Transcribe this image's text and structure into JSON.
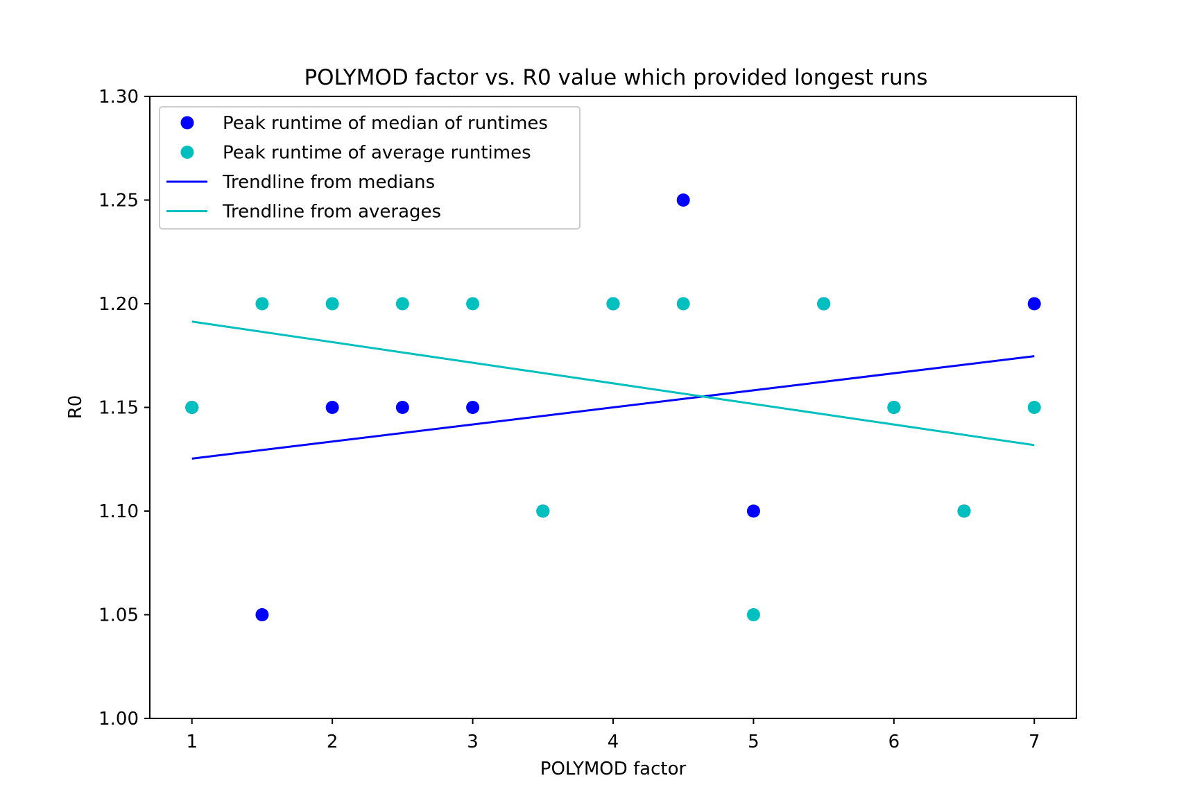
{
  "chart_data": {
    "type": "scatter",
    "title": "POLYMOD factor vs. R0 value which provided longest runs",
    "xlabel": "POLYMOD factor",
    "ylabel": "R0",
    "xlim": [
      0.7,
      7.3
    ],
    "ylim": [
      1.0,
      1.3
    ],
    "xticks": [
      1,
      2,
      3,
      4,
      5,
      6,
      7
    ],
    "xtick_labels": [
      "1",
      "2",
      "3",
      "4",
      "5",
      "6",
      "7"
    ],
    "yticks": [
      1.0,
      1.05,
      1.1,
      1.15,
      1.2,
      1.25,
      1.3
    ],
    "ytick_labels": [
      "1.00",
      "1.05",
      "1.10",
      "1.15",
      "1.20",
      "1.25",
      "1.30"
    ],
    "grid": false,
    "legend_position": "upper-left",
    "series": [
      {
        "name": "Peak runtime of median of runtimes",
        "kind": "scatter",
        "color": "#0000ff",
        "x": [
          1,
          1.5,
          2,
          2.5,
          3,
          3.5,
          4,
          4.5,
          5,
          5.5,
          6,
          6.5,
          7
        ],
        "y": [
          1.15,
          1.05,
          1.15,
          1.15,
          1.15,
          1.1,
          1.2,
          1.25,
          1.1,
          1.2,
          1.15,
          1.1,
          1.2
        ]
      },
      {
        "name": "Peak runtime of average runtimes",
        "kind": "scatter",
        "color": "#00bfbf",
        "x": [
          1,
          1.5,
          2,
          2.5,
          3,
          3.5,
          4,
          4.5,
          5,
          5.5,
          6,
          6.5,
          7
        ],
        "y": [
          1.15,
          1.2,
          1.2,
          1.2,
          1.2,
          1.1,
          1.2,
          1.2,
          1.05,
          1.2,
          1.15,
          1.1,
          1.15
        ]
      },
      {
        "name": "Trendline from medians",
        "kind": "line",
        "color": "#0000ff",
        "x": [
          1,
          7
        ],
        "y": [
          1.1253,
          1.1747
        ]
      },
      {
        "name": "Trendline from averages",
        "kind": "line",
        "color": "#00bfbf",
        "x": [
          1,
          7
        ],
        "y": [
          1.1914,
          1.1318
        ]
      }
    ]
  }
}
